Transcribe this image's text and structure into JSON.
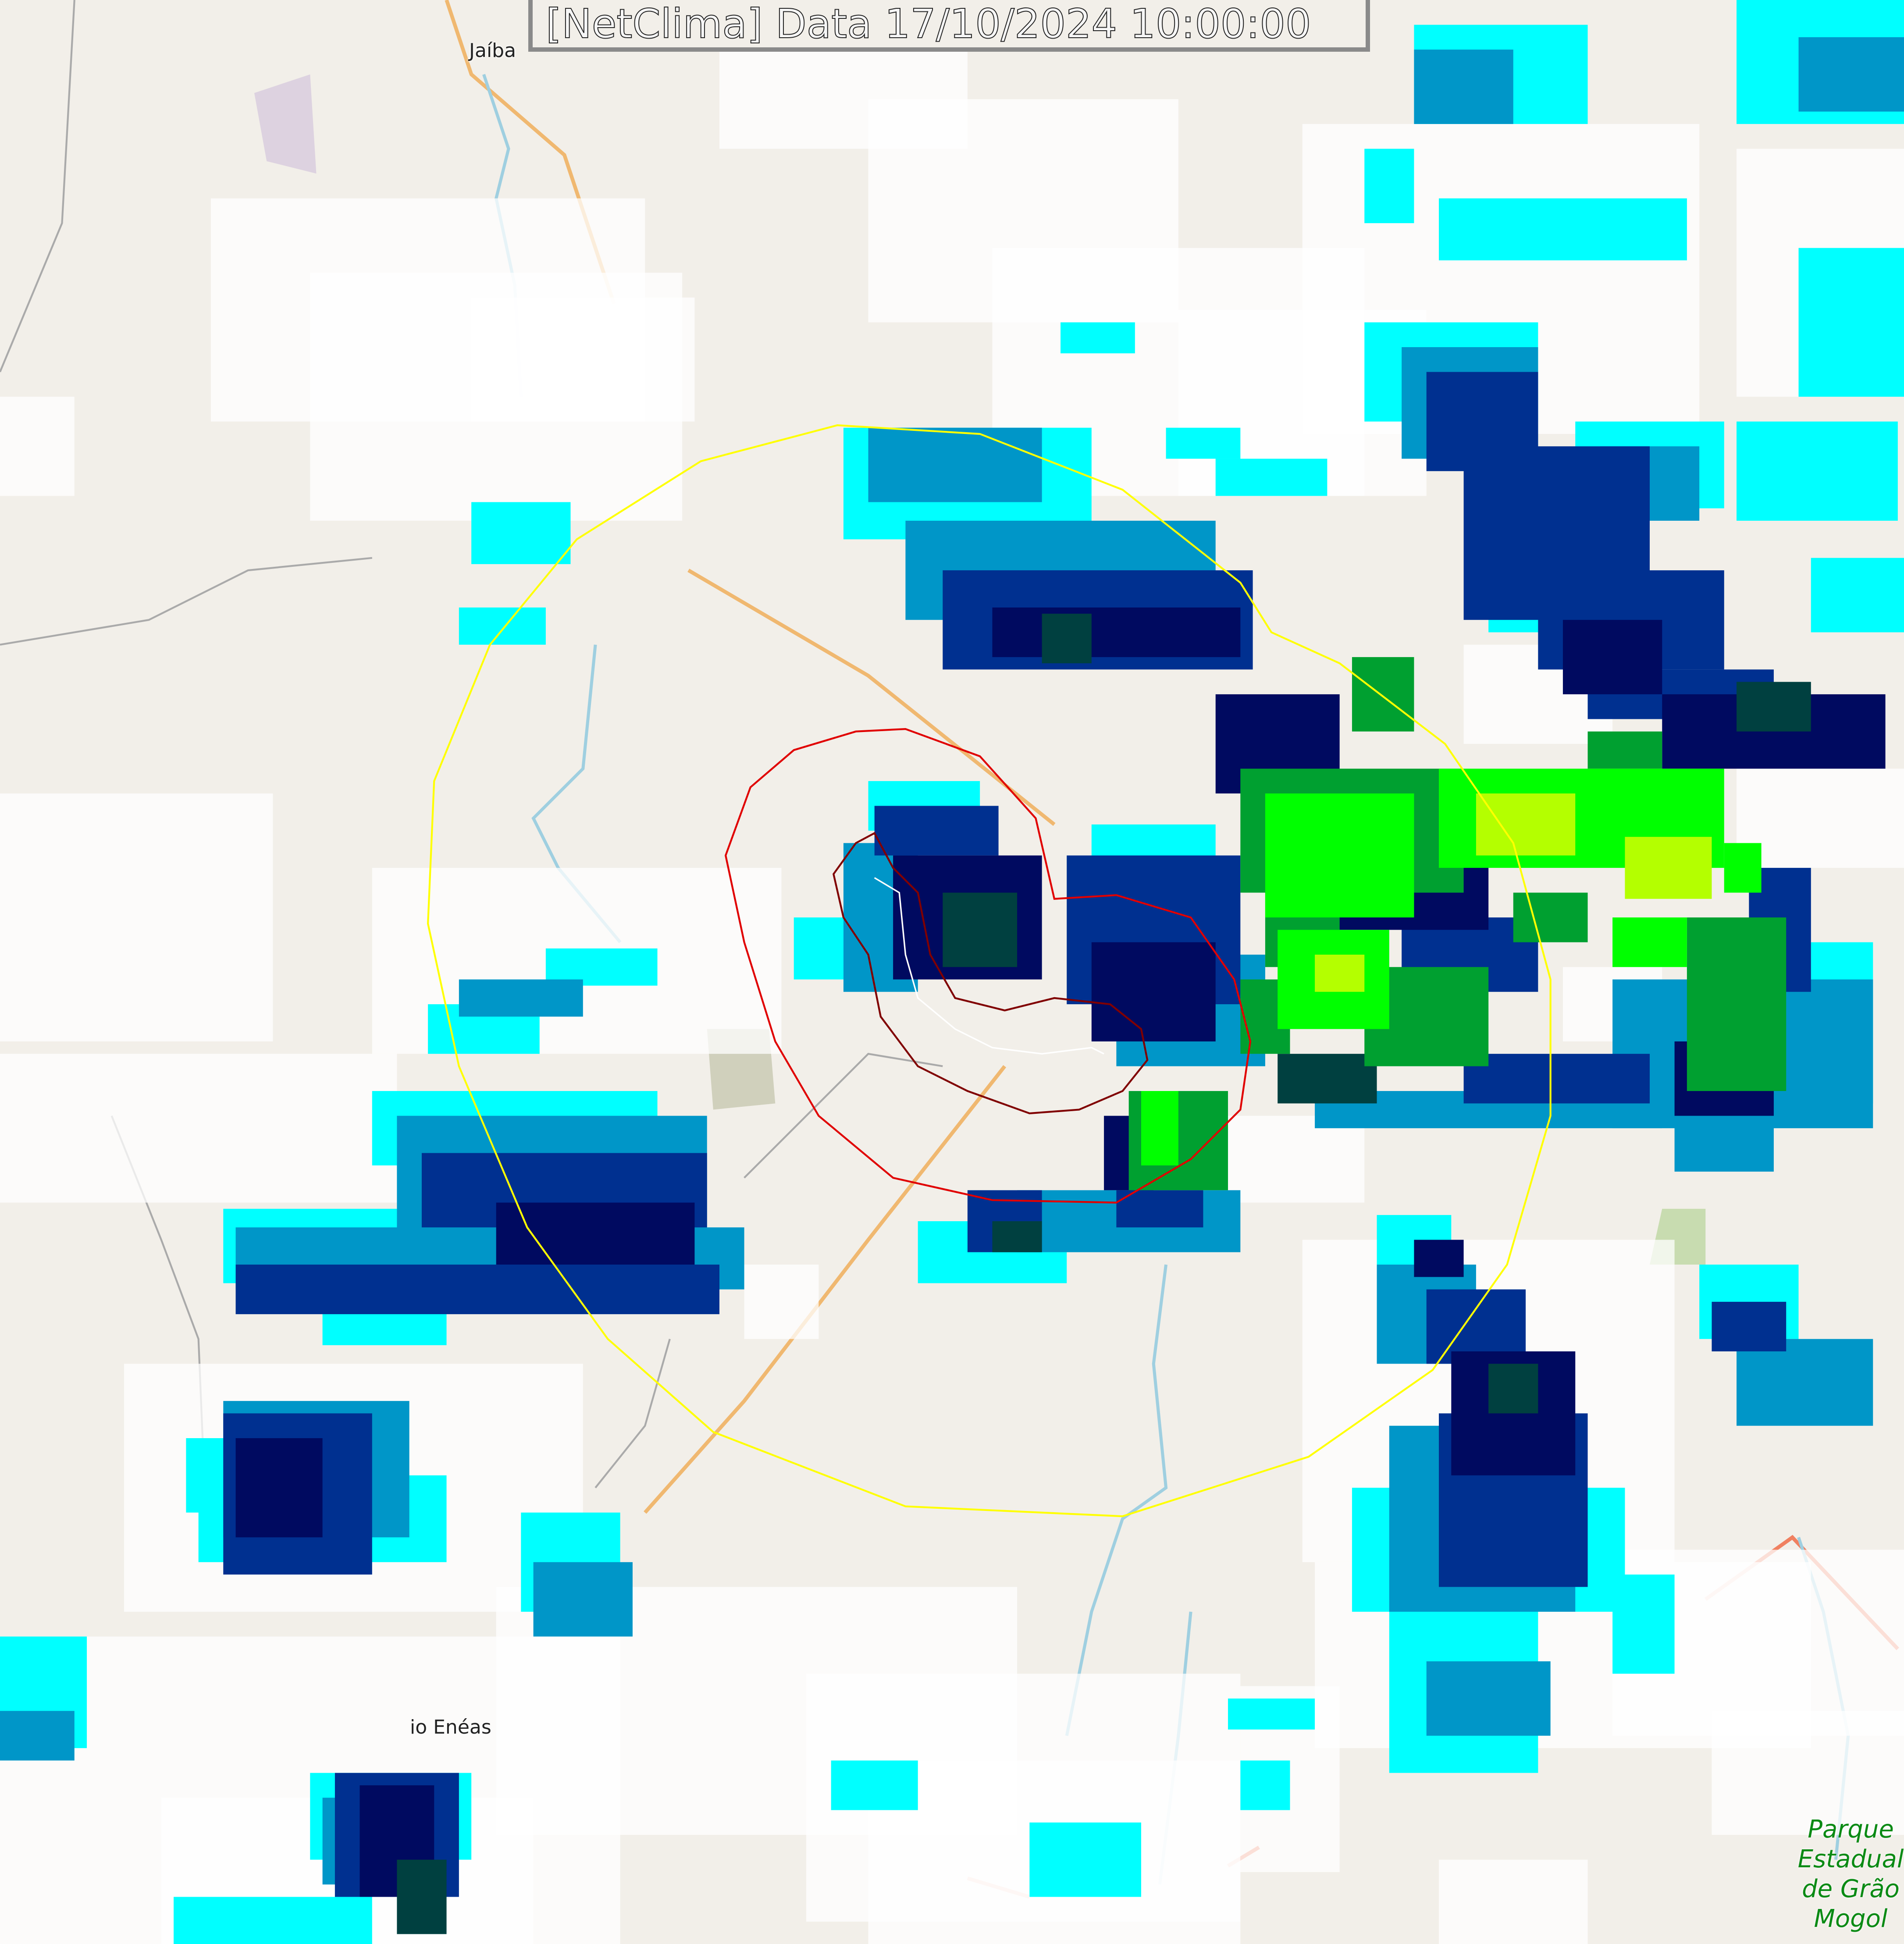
{
  "header": {
    "title": "[NetClima] Data 17/10/2024 10:00:00"
  },
  "places": {
    "jaiba": "Jaíba",
    "enéas": "io Enéas"
  },
  "park": {
    "line1": "Parque",
    "line2": "Estadual",
    "line3": "de Grão",
    "line4": "Mogol"
  },
  "colors": {
    "map_background": "#f2efe9",
    "outer_range_ring": "#ffff00",
    "inner_range_ring": "#e00000",
    "cell_outline": "#800000",
    "radar_scale": [
      "#ffffff",
      "#00ffff",
      "#00c8e6",
      "#0096c8",
      "#0060b0",
      "#003090",
      "#000a60",
      "#004040",
      "#00a030",
      "#00ff00",
      "#b4ff00"
    ]
  }
}
